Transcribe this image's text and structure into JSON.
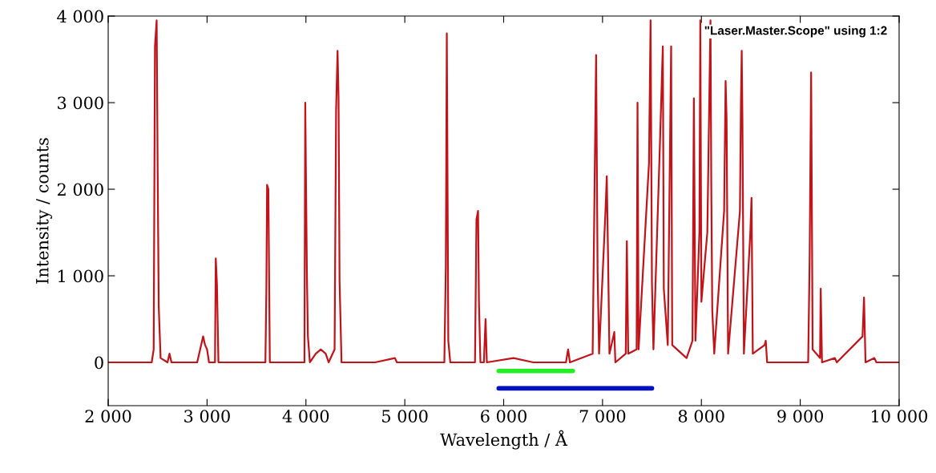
{
  "chart_data": {
    "type": "line",
    "xlabel": "Wavelength / Å",
    "ylabel": "Intensity / counts",
    "annotations": [
      "\"Laser.Master.Scope\" using 1:2"
    ],
    "series": [
      {
        "color": "#c0141a",
        "x": [
          2000,
          2440,
          2460,
          2473,
          2490,
          2500,
          2511,
          2530,
          2600,
          2620,
          2640,
          2900,
          2950,
          2960,
          2980,
          3000,
          3020,
          3080,
          3088,
          3100,
          3115,
          3590,
          3600,
          3607,
          3620,
          3635,
          3985,
          3993,
          4010,
          4020,
          4040,
          4100,
          4150,
          4200,
          4230,
          4290,
          4305,
          4320,
          4330,
          4340,
          4360,
          4700,
          4900,
          4920,
          5400,
          5415,
          5425,
          5440,
          5460,
          5710,
          5725,
          5741,
          5750,
          5765,
          5800,
          5817,
          5830,
          6100,
          6300,
          6630,
          6652,
          6670,
          6900,
          6935,
          6950,
          6965,
          7030,
          7043,
          7055,
          7070,
          7110,
          7119,
          7130,
          7235,
          7246,
          7260,
          7345,
          7354,
          7365,
          7470,
          7486,
          7500,
          7515,
          7580,
          7610,
          7620,
          7660,
          7694,
          7705,
          7850,
          7910,
          7924,
          7940,
          7980,
          7989,
          8000,
          8060,
          8092,
          8100,
          8110,
          8130,
          8230,
          8245,
          8255,
          8270,
          8390,
          8400,
          8408,
          8415,
          8430,
          8495,
          8507,
          8520,
          8640,
          8651,
          8665,
          9080,
          9095,
          9110,
          9125,
          9200,
          9207,
          9220,
          9350,
          9370,
          9630,
          9645,
          9660,
          9750,
          9770,
          10000
        ],
        "values": [
          0,
          0,
          150,
          3650,
          3950,
          2250,
          650,
          50,
          0,
          100,
          0,
          0,
          250,
          300,
          200,
          150,
          0,
          0,
          1200,
          900,
          0,
          0,
          850,
          2050,
          2000,
          0,
          0,
          3000,
          1000,
          300,
          0,
          100,
          150,
          100,
          0,
          150,
          2900,
          3600,
          3050,
          950,
          0,
          0,
          50,
          0,
          0,
          1100,
          3800,
          250,
          0,
          0,
          1650,
          1750,
          700,
          0,
          0,
          500,
          0,
          50,
          0,
          0,
          150,
          0,
          100,
          3550,
          1050,
          100,
          1750,
          2150,
          1300,
          100,
          300,
          350,
          0,
          100,
          1400,
          100,
          150,
          3000,
          150,
          2300,
          3950,
          900,
          150,
          2500,
          3650,
          850,
          200,
          3650,
          200,
          50,
          250,
          3050,
          250,
          1500,
          3950,
          700,
          1500,
          3950,
          2050,
          600,
          100,
          1750,
          3250,
          2800,
          100,
          1750,
          3000,
          3600,
          2800,
          100,
          1500,
          1900,
          100,
          200,
          250,
          0,
          0,
          1200,
          3350,
          150,
          50,
          850,
          0,
          50,
          0,
          300,
          750,
          0,
          50,
          0,
          0
        ]
      },
      {
        "color": "#22ee22",
        "x": [
          5950,
          6700
        ],
        "values": [
          -100,
          -100
        ]
      },
      {
        "color": "#0010c0",
        "x": [
          5950,
          7500
        ],
        "values": [
          -300,
          -300
        ]
      }
    ],
    "xlim": [
      2000,
      10000
    ],
    "xticks": [
      {
        "value": 2000,
        "label": "2 000"
      },
      {
        "value": 3000,
        "label": "3 000"
      },
      {
        "value": 4000,
        "label": "4 000"
      },
      {
        "value": 5000,
        "label": "5 000"
      },
      {
        "value": 6000,
        "label": "6 000"
      },
      {
        "value": 7000,
        "label": "7 000"
      },
      {
        "value": 8000,
        "label": "8 000"
      },
      {
        "value": 9000,
        "label": "9 000"
      },
      {
        "value": 10000,
        "label": "10 000"
      }
    ],
    "ylim": [
      -500,
      4000
    ],
    "yticks": [
      0,
      {
        "value": 1000,
        "label": "1 000"
      },
      {
        "value": 2000,
        "label": "2 000"
      },
      {
        "value": 3000,
        "label": "3 000"
      },
      {
        "value": 4000,
        "label": "4 000"
      }
    ],
    "grid": false,
    "legend": false,
    "marker": "none",
    "line_style": "solid"
  }
}
